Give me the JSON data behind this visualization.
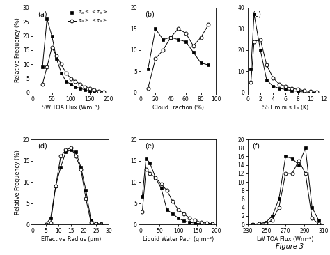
{
  "panel_a": {
    "label": "(a)",
    "xlabel": "SW TOA Flux (Wm⁻²)",
    "ylabel": "Relative Frequency (%)",
    "xlim": [
      0,
      200
    ],
    "ylim": [
      0,
      30
    ],
    "yticks": [
      0,
      5,
      10,
      15,
      20,
      25,
      30
    ],
    "xticks": [
      0,
      50,
      100,
      150,
      200
    ],
    "filled_x": [
      25,
      37,
      50,
      62,
      75,
      87,
      100,
      112,
      125,
      137,
      150,
      162,
      175,
      187
    ],
    "filled_y": [
      9,
      26,
      20,
      12,
      7,
      4,
      3,
      2,
      1.5,
      1,
      0.5,
      0.5,
      0.3,
      0.2
    ],
    "open_x": [
      25,
      37,
      50,
      62,
      75,
      87,
      100,
      112,
      125,
      137,
      150,
      162,
      175,
      187
    ],
    "open_y": [
      3,
      9,
      16,
      13,
      10,
      7,
      5,
      4,
      3,
      2,
      1.5,
      1,
      0.5,
      0.3
    ]
  },
  "panel_b": {
    "label": "(b)",
    "xlabel": "Cloud Fraction (%)",
    "xlim": [
      0,
      100
    ],
    "ylim": [
      0,
      20
    ],
    "yticks": [
      0,
      5,
      10,
      15,
      20
    ],
    "xticks": [
      0,
      20,
      40,
      60,
      80,
      100
    ],
    "filled_x": [
      10,
      20,
      30,
      40,
      50,
      60,
      70,
      80,
      90
    ],
    "filled_y": [
      5.5,
      15,
      12.5,
      13,
      12.5,
      12,
      9.5,
      7,
      6.5
    ],
    "open_x": [
      10,
      20,
      30,
      40,
      50,
      60,
      70,
      80,
      90
    ],
    "open_y": [
      1,
      8,
      10,
      13,
      15,
      14,
      11,
      13,
      16
    ]
  },
  "panel_c": {
    "label": "(c)",
    "xlabel": "SST minus Tₑ (K)",
    "xlim": [
      0,
      12
    ],
    "ylim": [
      0,
      40
    ],
    "yticks": [
      0,
      10,
      20,
      30,
      40
    ],
    "xticks": [
      0,
      2,
      4,
      6,
      8,
      10,
      12
    ],
    "filled_x": [
      0.5,
      1,
      2,
      3,
      4,
      5,
      6,
      7,
      8,
      9,
      10,
      11
    ],
    "filled_y": [
      11,
      37,
      20,
      6,
      3,
      2,
      1.5,
      1,
      0.5,
      0.3,
      0.2,
      0.1
    ],
    "open_x": [
      0.5,
      1,
      2,
      3,
      4,
      5,
      6,
      7,
      8,
      9,
      10,
      11
    ],
    "open_y": [
      5,
      24,
      25,
      13,
      7,
      4,
      3,
      2,
      1.5,
      1,
      0.5,
      0.2
    ]
  },
  "panel_d": {
    "label": "(d)",
    "xlabel": "Effective Radius (μm)",
    "ylabel": "Relative Frequency (%)",
    "xlim": [
      0,
      30
    ],
    "ylim": [
      0,
      20
    ],
    "yticks": [
      0,
      5,
      10,
      15,
      20
    ],
    "xticks": [
      0,
      5,
      10,
      15,
      20,
      25,
      30
    ],
    "filled_x": [
      5,
      7,
      9,
      11,
      13,
      15,
      17,
      19,
      21,
      23,
      25,
      27
    ],
    "filled_y": [
      0,
      1.5,
      9,
      13.5,
      17,
      17.5,
      17,
      13.5,
      8,
      1,
      0.3,
      0.1
    ],
    "open_x": [
      5,
      7,
      9,
      11,
      13,
      15,
      17,
      19,
      21,
      23,
      25,
      27
    ],
    "open_y": [
      0,
      0.3,
      9,
      16,
      17.5,
      18,
      16,
      13,
      6,
      0.5,
      0.1,
      0
    ]
  },
  "panel_e": {
    "label": "(e)",
    "xlabel": "Liquid Water Path (g m⁻²)",
    "xlim": [
      0,
      200
    ],
    "ylim": [
      0,
      20
    ],
    "yticks": [
      0,
      5,
      10,
      15,
      20
    ],
    "xticks": [
      0,
      50,
      100,
      150,
      200
    ],
    "filled_x": [
      5,
      15,
      25,
      40,
      55,
      70,
      85,
      100,
      115,
      130,
      145,
      160,
      175,
      190
    ],
    "filled_y": [
      6.5,
      15.5,
      14.5,
      11,
      8.5,
      3.5,
      2.5,
      1.5,
      0.8,
      0.5,
      0.3,
      0.2,
      0.1,
      0.1
    ],
    "open_x": [
      5,
      15,
      25,
      40,
      55,
      70,
      85,
      100,
      115,
      130,
      145,
      160,
      175,
      190
    ],
    "open_y": [
      3,
      13,
      12,
      11,
      9.5,
      8,
      5.5,
      3.5,
      2.5,
      1.5,
      1,
      0.5,
      0.3,
      0.2
    ]
  },
  "panel_f": {
    "label": "(f)",
    "xlabel": "LW TOA Flux (Wm⁻²)",
    "xlim": [
      230,
      310
    ],
    "ylim": [
      0,
      20
    ],
    "yticks": [
      0,
      2,
      4,
      6,
      8,
      10,
      12,
      14,
      16,
      18,
      20
    ],
    "xticks": [
      230,
      250,
      270,
      290,
      310
    ],
    "filled_x": [
      235,
      242,
      249,
      256,
      263,
      270,
      277,
      284,
      291,
      298,
      305
    ],
    "filled_y": [
      0,
      0.2,
      0.5,
      2,
      6,
      16,
      15.5,
      14,
      18,
      4,
      1
    ],
    "open_x": [
      235,
      242,
      249,
      256,
      263,
      270,
      277,
      284,
      291,
      298,
      305
    ],
    "open_y": [
      0,
      0.1,
      0.2,
      1,
      4,
      12,
      12,
      15,
      12,
      1.5,
      0.1
    ]
  },
  "legend_label1": "$\\tau_a$ ≤ $<\\tau_a>$",
  "legend_label2": "$\\tau_a$ > $<\\tau_a>$",
  "figure_label": "Figure 3"
}
